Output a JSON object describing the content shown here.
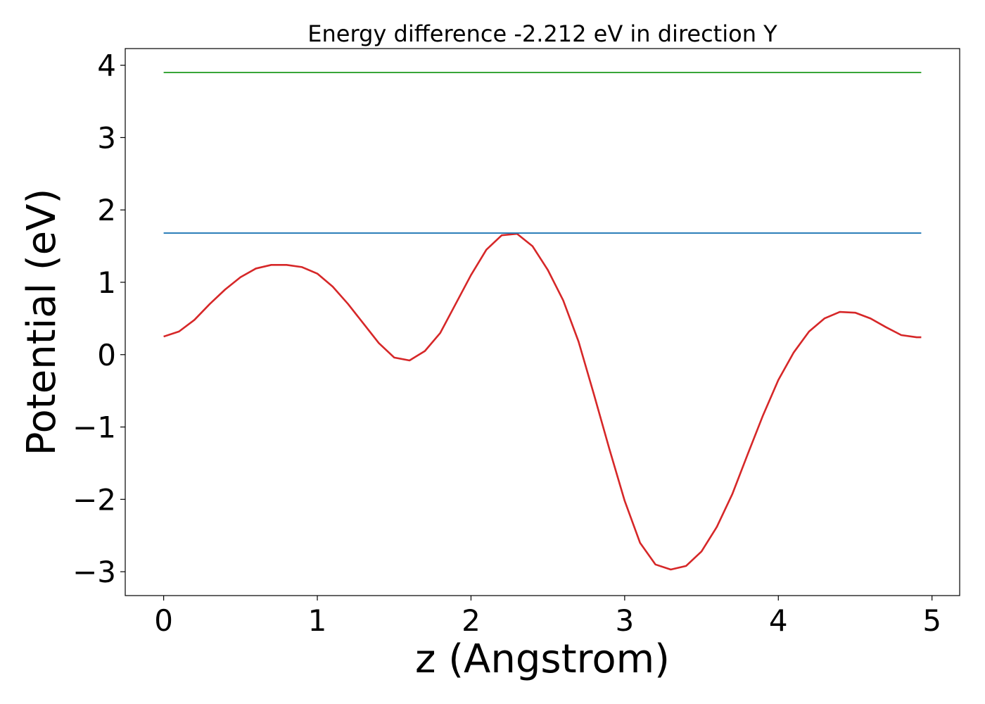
{
  "chart_data": {
    "type": "line",
    "title": "Energy difference -2.212 eV in direction Y",
    "xlabel": "z (Angstrom)",
    "ylabel": "Potential (eV)",
    "xlim": [
      -0.25,
      5.18
    ],
    "ylim": [
      -3.33,
      4.23
    ],
    "xticks": [
      0,
      1,
      2,
      3,
      4,
      5
    ],
    "xtick_labels": [
      "0",
      "1",
      "2",
      "3",
      "4",
      "5"
    ],
    "yticks": [
      -3,
      -2,
      -1,
      0,
      1,
      2,
      3,
      4
    ],
    "ytick_labels": [
      "−3",
      "−2",
      "−1",
      "0",
      "1",
      "2",
      "3",
      "4"
    ],
    "grid": false,
    "series": [
      {
        "color": "#d62728",
        "x": [
          0.0,
          0.1,
          0.2,
          0.3,
          0.4,
          0.5,
          0.6,
          0.7,
          0.8,
          0.9,
          1.0,
          1.1,
          1.2,
          1.3,
          1.4,
          1.5,
          1.6,
          1.7,
          1.8,
          1.9,
          2.0,
          2.1,
          2.2,
          2.3,
          2.4,
          2.5,
          2.6,
          2.7,
          2.8,
          2.9,
          3.0,
          3.1,
          3.2,
          3.3,
          3.4,
          3.5,
          3.6,
          3.7,
          3.8,
          3.9,
          4.0,
          4.1,
          4.2,
          4.3,
          4.4,
          4.5,
          4.6,
          4.7,
          4.8,
          4.9,
          4.93
        ],
        "y": [
          0.25,
          0.32,
          0.48,
          0.7,
          0.9,
          1.07,
          1.19,
          1.24,
          1.24,
          1.21,
          1.12,
          0.94,
          0.7,
          0.43,
          0.16,
          -0.04,
          -0.08,
          0.05,
          0.3,
          0.7,
          1.1,
          1.45,
          1.65,
          1.67,
          1.5,
          1.17,
          0.75,
          0.18,
          -0.55,
          -1.3,
          -2.02,
          -2.6,
          -2.9,
          -2.97,
          -2.92,
          -2.72,
          -2.38,
          -1.93,
          -1.38,
          -0.84,
          -0.35,
          0.03,
          0.32,
          0.5,
          0.59,
          0.58,
          0.5,
          0.38,
          0.27,
          0.24,
          0.24
        ]
      },
      {
        "color": "#2ca02c",
        "x": [
          0.0,
          4.93
        ],
        "y": [
          3.9,
          3.9
        ]
      },
      {
        "color": "#1f77b4",
        "x": [
          0.0,
          4.93
        ],
        "y": [
          1.68,
          1.68
        ]
      }
    ]
  }
}
